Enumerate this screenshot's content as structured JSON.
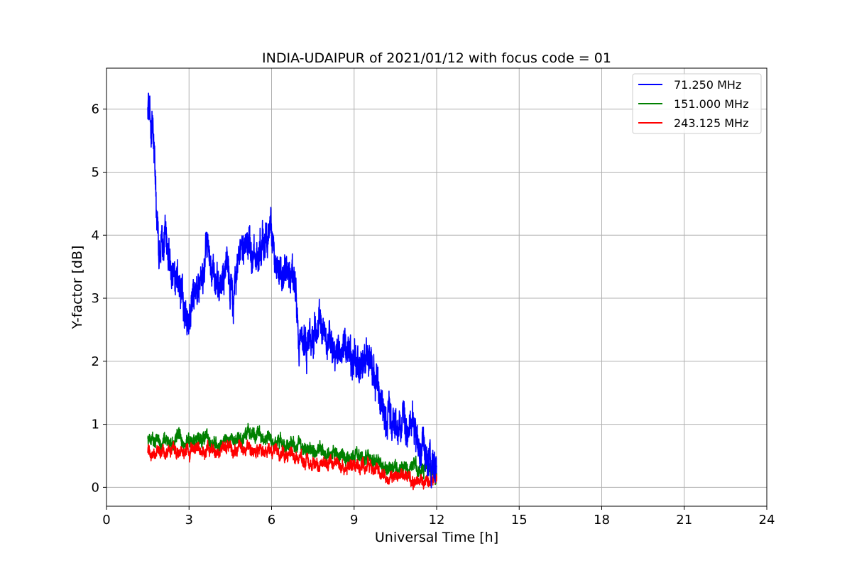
{
  "chart_data": {
    "type": "line",
    "title": "INDIA-UDAIPUR of 2021/01/12 with focus code = 01",
    "xlabel": "Universal Time [h]",
    "ylabel": "Y-factor [dB]",
    "xlim": [
      0,
      24
    ],
    "ylim": [
      -0.3,
      6.65
    ],
    "xticks": [
      0,
      3,
      6,
      9,
      12,
      15,
      18,
      21,
      24
    ],
    "yticks": [
      0,
      1,
      2,
      3,
      4,
      5,
      6
    ],
    "grid": true,
    "legend_position": "top-right",
    "series": [
      {
        "name": "  71.250 MHz",
        "color": "#0000ff",
        "noise": 0.35,
        "x": [
          1.5,
          1.6,
          1.7,
          1.8,
          1.9,
          2.0,
          2.2,
          2.4,
          2.6,
          2.8,
          3.0,
          3.2,
          3.5,
          3.7,
          3.8,
          4.0,
          4.2,
          4.4,
          4.6,
          4.8,
          5.0,
          5.2,
          5.5,
          5.8,
          6.0,
          6.1,
          6.3,
          6.6,
          6.8,
          7.0,
          7.2,
          7.5,
          7.8,
          8.0,
          8.3,
          8.6,
          9.0,
          9.3,
          9.6,
          9.8,
          10.0,
          10.3,
          10.6,
          11.0,
          11.3,
          11.6,
          11.8,
          12.0
        ],
        "y": [
          6.1,
          5.9,
          5.7,
          4.5,
          3.6,
          3.9,
          4.0,
          3.5,
          3.4,
          2.8,
          2.7,
          3.0,
          3.3,
          3.9,
          3.4,
          3.3,
          3.1,
          3.6,
          2.9,
          3.5,
          3.9,
          3.8,
          3.6,
          4.0,
          4.1,
          3.5,
          3.4,
          3.3,
          3.5,
          2.3,
          2.2,
          2.5,
          2.5,
          2.5,
          2.0,
          2.2,
          2.0,
          2.1,
          1.9,
          1.6,
          1.3,
          1.2,
          1.0,
          1.0,
          0.8,
          0.6,
          0.45,
          0.3
        ]
      },
      {
        "name": "151.000 MHz",
        "color": "#008000",
        "noise": 0.14,
        "x": [
          1.5,
          2.5,
          3.5,
          4.5,
          5.0,
          5.5,
          6.0,
          7.0,
          8.0,
          9.0,
          9.5,
          10.0,
          11.0,
          12.0
        ],
        "y": [
          0.75,
          0.72,
          0.7,
          0.75,
          0.85,
          0.85,
          0.75,
          0.65,
          0.55,
          0.5,
          0.5,
          0.35,
          0.3,
          0.28
        ]
      },
      {
        "name": "243.125 MHz",
        "color": "#ff0000",
        "noise": 0.12,
        "x": [
          1.5,
          2.5,
          3.5,
          4.5,
          5.5,
          6.5,
          7.5,
          8.5,
          9.5,
          10.0,
          11.0,
          12.0
        ],
        "y": [
          0.55,
          0.55,
          0.58,
          0.65,
          0.6,
          0.5,
          0.4,
          0.35,
          0.35,
          0.2,
          0.15,
          0.12
        ]
      }
    ]
  }
}
